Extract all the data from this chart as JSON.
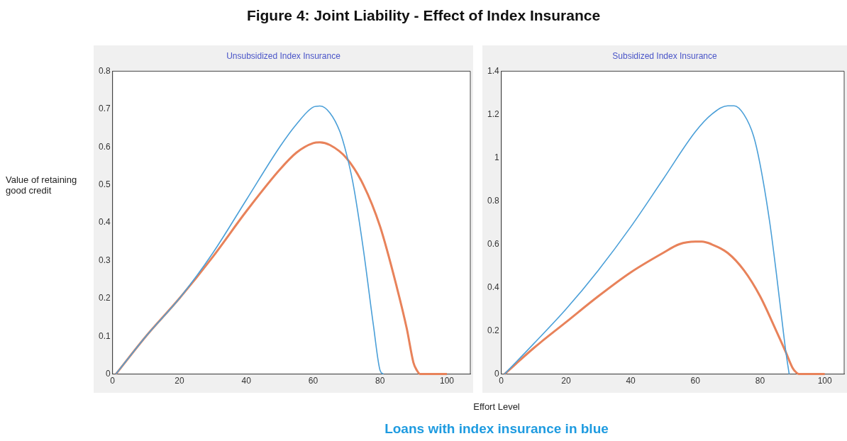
{
  "chart_data": [
    {
      "type": "line",
      "title": "Figure 4: Joint Liability - Effect of Index Insurance",
      "subtitle": "Unsubsidized Index Insurance",
      "ylabel": "Value of retaining good credit",
      "xlabel": "Effort Level",
      "xlim": [
        0,
        107
      ],
      "xticks": [
        0,
        20,
        40,
        60,
        80,
        100
      ],
      "ylim": [
        0,
        0.8
      ],
      "yticks": [
        0,
        0.1,
        0.2,
        0.3,
        0.4,
        0.5,
        0.6,
        0.7,
        0.8
      ],
      "grid": false,
      "legend": false,
      "series": [
        {
          "color": "#4a9fd8",
          "x": [
            1,
            10,
            20,
            30,
            40,
            50,
            55,
            60,
            62,
            65,
            68,
            70,
            72,
            75,
            78,
            80,
            81
          ],
          "values": [
            0,
            0.1,
            0.2,
            0.32,
            0.46,
            0.6,
            0.66,
            0.705,
            0.708,
            0.69,
            0.64,
            0.58,
            0.5,
            0.33,
            0.13,
            0.01,
            0
          ]
        },
        {
          "color": "#e8825a",
          "x": [
            1,
            10,
            20,
            30,
            40,
            50,
            55,
            60,
            62,
            65,
            70,
            75,
            80,
            85,
            88,
            90,
            91,
            92,
            100
          ],
          "values": [
            0,
            0.1,
            0.2,
            0.31,
            0.43,
            0.54,
            0.585,
            0.61,
            0.612,
            0.605,
            0.57,
            0.5,
            0.39,
            0.23,
            0.12,
            0.03,
            0.01,
            0,
            0
          ]
        }
      ]
    },
    {
      "type": "line",
      "subtitle": "Subsidized Index Insurance",
      "annotations": [
        "Loans with index insurance in blue"
      ],
      "xlim": [
        0,
        106
      ],
      "xticks": [
        0,
        20,
        40,
        60,
        80,
        100
      ],
      "ylim": [
        0,
        1.4
      ],
      "yticks": [
        0,
        0.2,
        0.4,
        0.6,
        0.8,
        1,
        1.2,
        1.4
      ],
      "grid": false,
      "legend": false,
      "series": [
        {
          "color": "#4a9fd8",
          "x": [
            1,
            10,
            20,
            30,
            40,
            50,
            60,
            65,
            70,
            72,
            75,
            78,
            80,
            83,
            85,
            87,
            88,
            89
          ],
          "values": [
            0,
            0.14,
            0.3,
            0.48,
            0.68,
            0.9,
            1.12,
            1.2,
            1.24,
            1.24,
            1.2,
            1.1,
            0.97,
            0.7,
            0.47,
            0.22,
            0.1,
            0
          ]
        },
        {
          "color": "#e8825a",
          "x": [
            1,
            10,
            20,
            30,
            40,
            50,
            55,
            60,
            62,
            65,
            70,
            75,
            80,
            85,
            88,
            90,
            91,
            92,
            100
          ],
          "values": [
            0,
            0.12,
            0.24,
            0.36,
            0.47,
            0.56,
            0.6,
            0.612,
            0.612,
            0.6,
            0.56,
            0.48,
            0.36,
            0.2,
            0.1,
            0.03,
            0.01,
            0,
            0
          ]
        }
      ]
    }
  ]
}
